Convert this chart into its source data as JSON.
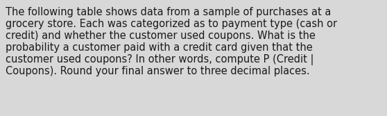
{
  "lines": [
    "The following table shows data from a sample of purchases at a",
    "grocery store. Each was categorized as to payment type (cash or",
    "credit) and whether the customer used coupons. What is the",
    "probability a customer paid with a credit card given that the",
    "customer used coupons? In other words, compute P (Credit |",
    "Coupons). Round your final answer to three decimal places."
  ],
  "background_color": "#d8d8d8",
  "text_color": "#1a1a1a",
  "font_size": 10.5,
  "fig_width": 5.58,
  "fig_height": 1.67,
  "dpi": 100
}
